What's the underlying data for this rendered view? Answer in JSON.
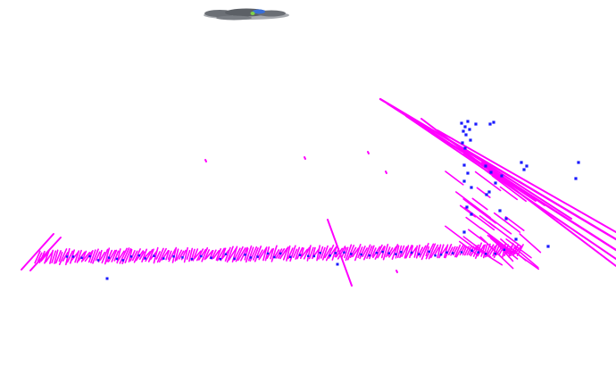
{
  "scene": {
    "background": "#ffffff",
    "colors": {
      "line_segments": "#ff00ff",
      "points": "#1a1aff",
      "vehicle_body": "#6b6f75",
      "vehicle_accent": "#3a6fd8",
      "vehicle_marker": "#7fd04a"
    },
    "icons": {
      "vehicle": "vehicle-model-icon"
    }
  }
}
